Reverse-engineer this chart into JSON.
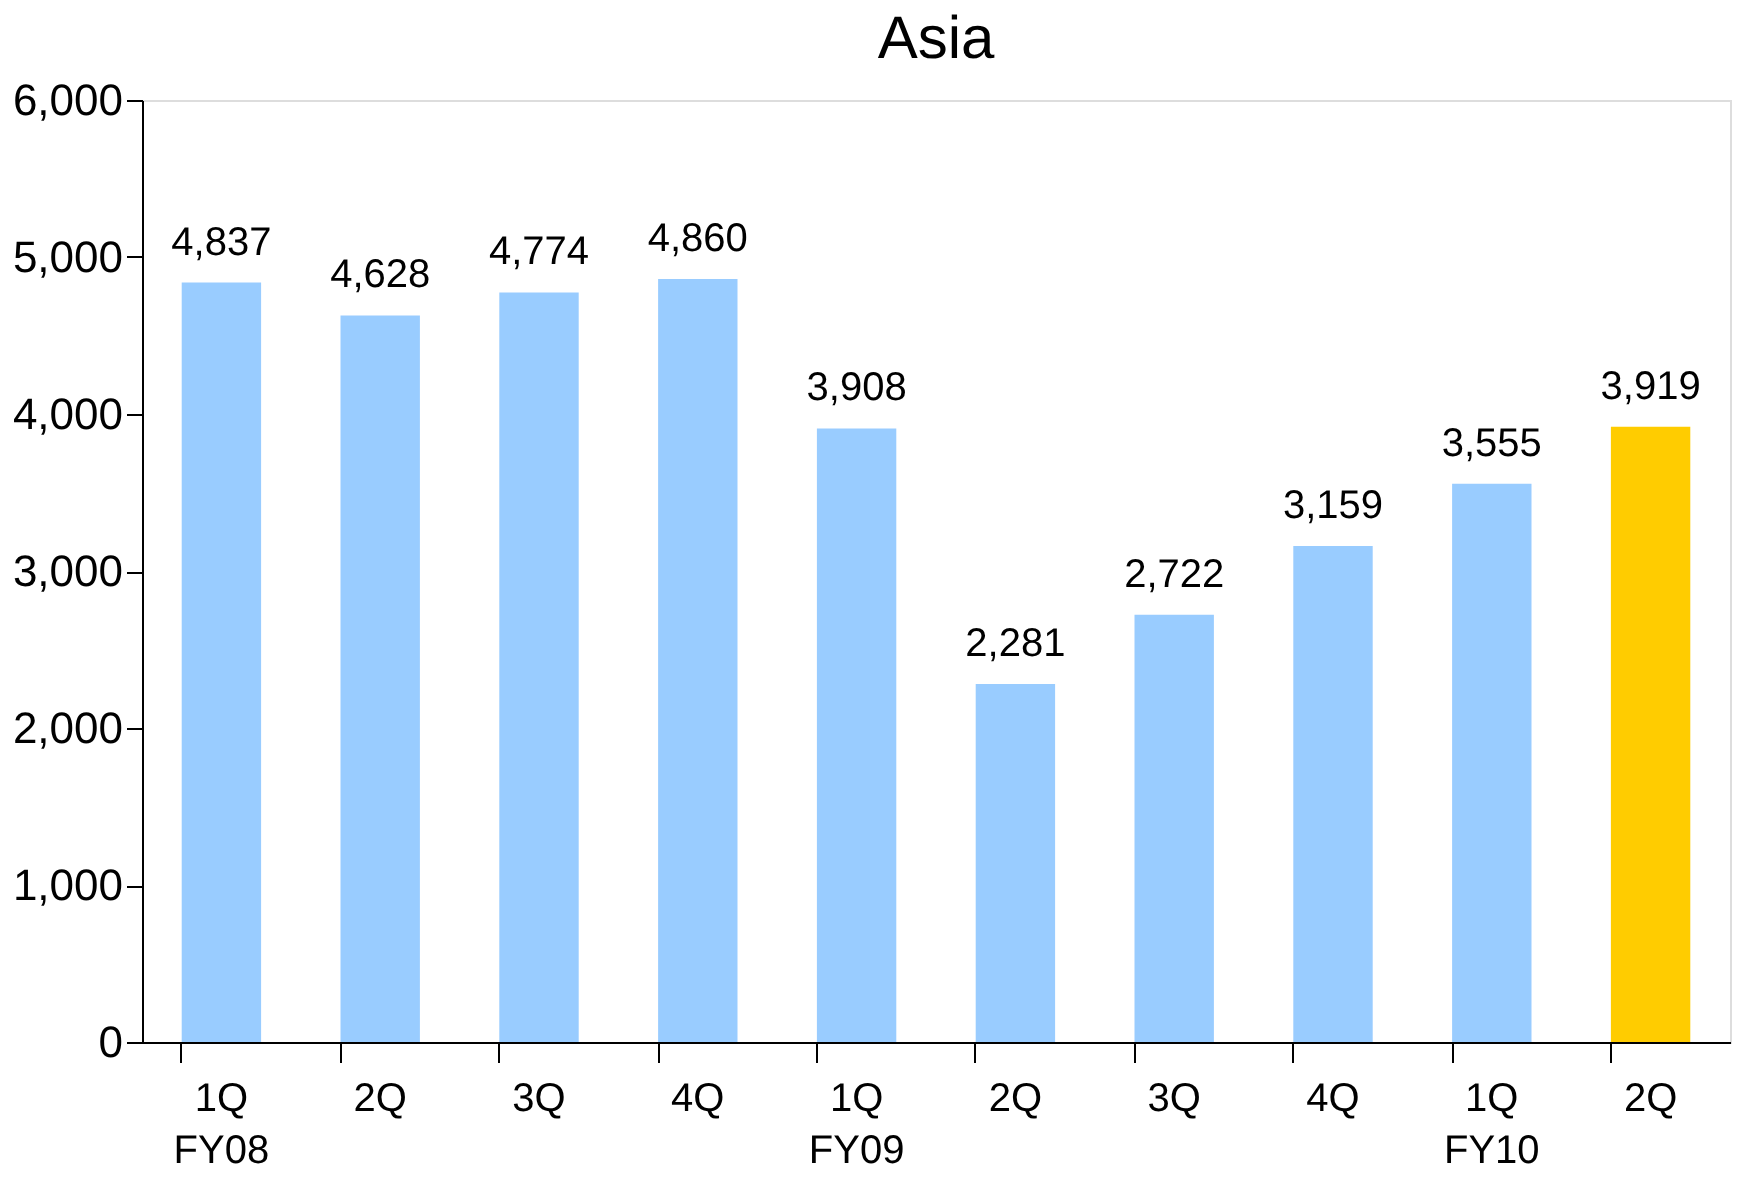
{
  "chart_data": {
    "type": "bar",
    "title": "Asia",
    "categories": [
      "1Q\nFY08",
      "2Q",
      "3Q",
      "4Q",
      "1Q\nFY09",
      "2Q",
      "3Q",
      "4Q",
      "1Q\nFY10",
      "2Q"
    ],
    "values": [
      4837,
      4628,
      4774,
      4860,
      3908,
      2281,
      2722,
      3159,
      3555,
      3919
    ],
    "value_labels": [
      "4,837",
      "4,628",
      "4,774",
      "4,860",
      "3,908",
      "2,281",
      "2,722",
      "3,159",
      "3,555",
      "3,919"
    ],
    "colors": [
      "#99ccff",
      "#99ccff",
      "#99ccff",
      "#99ccff",
      "#99ccff",
      "#99ccff",
      "#99ccff",
      "#99ccff",
      "#99ccff",
      "#ffcc00"
    ],
    "ylim": [
      0,
      6000
    ],
    "yticks": [
      0,
      {
        "value": 1000,
        "label": "1,000"
      },
      {
        "value": 2000,
        "label": "2,000"
      },
      {
        "value": 3000,
        "label": "3,000"
      },
      {
        "value": 4000,
        "label": "4,000"
      },
      {
        "value": 5000,
        "label": "5,000"
      },
      {
        "value": 6000,
        "label": "6,000"
      }
    ],
    "grid": false
  }
}
